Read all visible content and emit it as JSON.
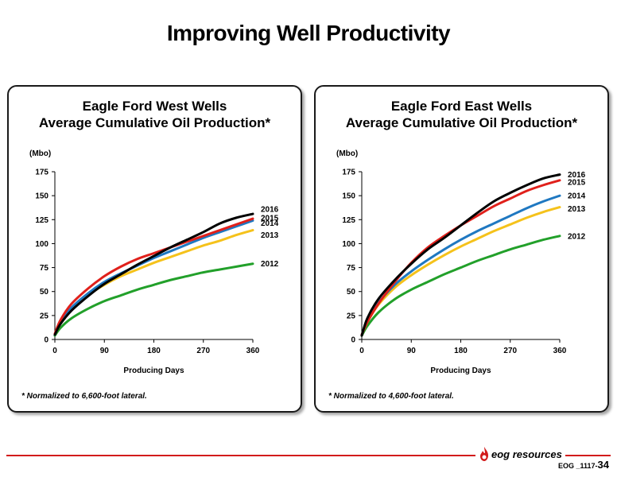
{
  "page": {
    "title": "Improving Well Productivity",
    "logo_text": "eog resources",
    "slide_code": "EOG _1117-",
    "slide_number": "34"
  },
  "colors": {
    "2012": "#22a02a",
    "2013": "#f5c21b",
    "2014": "#1f78c1",
    "2015": "#e0201b",
    "2016": "#000000",
    "accent_red": "#d21b1b"
  },
  "chart_data": [
    {
      "type": "line",
      "title": "Eagle Ford West Wells",
      "subtitle": "Average Cumulative Oil Production*",
      "ylabel": "(Mbo)",
      "xlabel": "Producing Days",
      "ylim": [
        0,
        175
      ],
      "xlim": [
        0,
        360
      ],
      "yticks": [
        0,
        25,
        50,
        75,
        100,
        125,
        150,
        175
      ],
      "xticks": [
        0,
        90,
        180,
        270,
        360
      ],
      "grid": false,
      "footnote": "* Normalized to 6,600-foot lateral.",
      "series": [
        {
          "name": "2012",
          "x": [
            0,
            10,
            30,
            60,
            90,
            120,
            150,
            180,
            210,
            240,
            270,
            300,
            330,
            360
          ],
          "values": [
            4,
            12,
            22,
            32,
            40,
            46,
            52,
            57,
            62,
            66,
            70,
            73,
            76,
            79
          ]
        },
        {
          "name": "2013",
          "x": [
            0,
            10,
            30,
            60,
            90,
            120,
            150,
            180,
            210,
            240,
            270,
            300,
            330,
            360
          ],
          "values": [
            5,
            17,
            32,
            46,
            57,
            66,
            73,
            80,
            86,
            92,
            98,
            103,
            109,
            114
          ]
        },
        {
          "name": "2014",
          "x": [
            0,
            10,
            30,
            60,
            90,
            120,
            150,
            180,
            210,
            240,
            270,
            300,
            330,
            360
          ],
          "values": [
            5,
            18,
            33,
            48,
            60,
            69,
            77,
            85,
            92,
            99,
            106,
            112,
            118,
            124
          ]
        },
        {
          "name": "2015",
          "x": [
            0,
            10,
            30,
            60,
            90,
            120,
            150,
            180,
            210,
            240,
            270,
            300,
            330,
            360
          ],
          "values": [
            6,
            20,
            37,
            53,
            66,
            76,
            84,
            90,
            96,
            102,
            108,
            114,
            120,
            126
          ]
        },
        {
          "name": "2016",
          "x": [
            0,
            10,
            30,
            60,
            90,
            120,
            150,
            180,
            210,
            240,
            270,
            300,
            330,
            360
          ],
          "values": [
            5,
            16,
            30,
            45,
            58,
            68,
            78,
            87,
            96,
            104,
            112,
            121,
            127,
            131
          ]
        }
      ]
    },
    {
      "type": "line",
      "title": "Eagle Ford East Wells",
      "subtitle": "Average Cumulative Oil Production*",
      "ylabel": "(Mbo)",
      "xlabel": "Producing Days",
      "ylim": [
        0,
        175
      ],
      "xlim": [
        0,
        360
      ],
      "yticks": [
        0,
        25,
        50,
        75,
        100,
        125,
        150,
        175
      ],
      "xticks": [
        0,
        90,
        180,
        270,
        360
      ],
      "grid": false,
      "footnote": "* Normalized to 4,600-foot lateral.",
      "series": [
        {
          "name": "2012",
          "x": [
            0,
            10,
            30,
            60,
            90,
            120,
            150,
            180,
            210,
            240,
            270,
            300,
            330,
            360
          ],
          "values": [
            4,
            14,
            28,
            42,
            52,
            60,
            68,
            75,
            82,
            88,
            94,
            99,
            104,
            108
          ]
        },
        {
          "name": "2013",
          "x": [
            0,
            10,
            30,
            60,
            90,
            120,
            150,
            180,
            210,
            240,
            270,
            300,
            330,
            360
          ],
          "values": [
            5,
            18,
            36,
            54,
            67,
            78,
            88,
            97,
            105,
            113,
            120,
            127,
            133,
            138
          ]
        },
        {
          "name": "2014",
          "x": [
            0,
            10,
            30,
            60,
            90,
            120,
            150,
            180,
            210,
            240,
            270,
            300,
            330,
            360
          ],
          "values": [
            5,
            19,
            38,
            57,
            71,
            83,
            94,
            104,
            113,
            121,
            129,
            137,
            144,
            150
          ]
        },
        {
          "name": "2015",
          "x": [
            0,
            10,
            30,
            60,
            90,
            120,
            150,
            180,
            210,
            240,
            270,
            300,
            330,
            360
          ],
          "values": [
            5,
            18,
            37,
            60,
            80,
            96,
            108,
            119,
            129,
            139,
            147,
            155,
            161,
            166
          ]
        },
        {
          "name": "2016",
          "x": [
            0,
            10,
            30,
            60,
            90,
            120,
            150,
            180,
            210,
            240,
            270,
            300,
            330,
            360
          ],
          "values": [
            4,
            22,
            42,
            62,
            79,
            94,
            106,
            119,
            132,
            144,
            153,
            161,
            168,
            172
          ]
        }
      ]
    }
  ]
}
